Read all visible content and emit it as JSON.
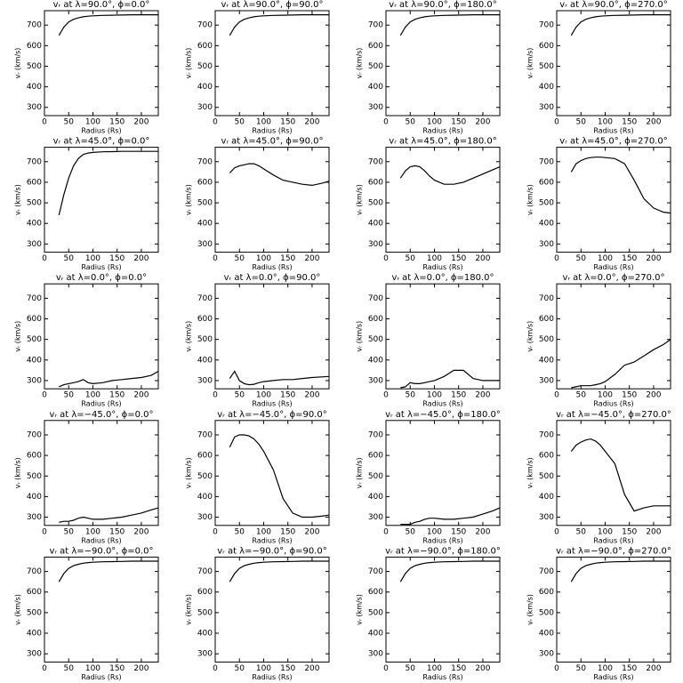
{
  "chart_data": [
    {
      "type": "line",
      "title": "vᵣ at λ=90.0°, ϕ=0.0°",
      "x_label": "Radius (Rs)",
      "y_label": "vᵣ (km/s)",
      "x": [
        30,
        40,
        50,
        60,
        70,
        80,
        90,
        100,
        120,
        140,
        160,
        180,
        200,
        220,
        235
      ],
      "values": [
        650,
        690,
        715,
        728,
        735,
        740,
        743,
        745,
        747,
        748,
        749,
        750,
        750,
        750,
        750
      ],
      "xlim": [
        0,
        235
      ],
      "ylim": [
        260,
        770
      ],
      "xticks": [
        0,
        50,
        100,
        150,
        200
      ],
      "yticks": [
        300,
        400,
        500,
        600,
        700
      ],
      "color": "#000000"
    },
    {
      "type": "line",
      "title": "vᵣ at λ=90.0°, ϕ=90.0°",
      "x_label": "Radius (Rs)",
      "y_label": "vᵣ (km/s)",
      "x": [
        30,
        40,
        50,
        60,
        70,
        80,
        90,
        100,
        120,
        140,
        160,
        180,
        200,
        220,
        235
      ],
      "values": [
        650,
        690,
        715,
        728,
        735,
        740,
        743,
        745,
        747,
        748,
        749,
        750,
        750,
        750,
        750
      ],
      "xlim": [
        0,
        235
      ],
      "ylim": [
        260,
        770
      ],
      "xticks": [
        0,
        50,
        100,
        150,
        200
      ],
      "yticks": [
        300,
        400,
        500,
        600,
        700
      ],
      "color": "#000000"
    },
    {
      "type": "line",
      "title": "vᵣ at λ=90.0°, ϕ=180.0°",
      "x_label": "Radius (Rs)",
      "y_label": "vᵣ (km/s)",
      "x": [
        30,
        40,
        50,
        60,
        70,
        80,
        90,
        100,
        120,
        140,
        160,
        180,
        200,
        220,
        235
      ],
      "values": [
        650,
        690,
        715,
        728,
        735,
        740,
        743,
        745,
        747,
        748,
        749,
        750,
        750,
        750,
        750
      ],
      "xlim": [
        0,
        235
      ],
      "ylim": [
        260,
        770
      ],
      "xticks": [
        0,
        50,
        100,
        150,
        200
      ],
      "yticks": [
        300,
        400,
        500,
        600,
        700
      ],
      "color": "#000000"
    },
    {
      "type": "line",
      "title": "vᵣ at λ=90.0°, ϕ=270.0°",
      "x_label": "Radius (Rs)",
      "y_label": "vᵣ (km/s)",
      "x": [
        30,
        40,
        50,
        60,
        70,
        80,
        90,
        100,
        120,
        140,
        160,
        180,
        200,
        220,
        235
      ],
      "values": [
        650,
        690,
        715,
        728,
        735,
        740,
        743,
        745,
        747,
        748,
        749,
        750,
        750,
        750,
        750
      ],
      "xlim": [
        0,
        235
      ],
      "ylim": [
        260,
        770
      ],
      "xticks": [
        0,
        50,
        100,
        150,
        200
      ],
      "yticks": [
        300,
        400,
        500,
        600,
        700
      ],
      "color": "#000000"
    },
    {
      "type": "line",
      "title": "vᵣ at λ=45.0°, ϕ=0.0°",
      "x_label": "Radius (Rs)",
      "y_label": "vᵣ (km/s)",
      "x": [
        30,
        40,
        50,
        60,
        70,
        80,
        90,
        100,
        120,
        140,
        160,
        180,
        200,
        220,
        235
      ],
      "values": [
        440,
        540,
        620,
        680,
        715,
        735,
        742,
        745,
        748,
        749,
        750,
        750,
        750,
        750,
        750
      ],
      "xlim": [
        0,
        235
      ],
      "ylim": [
        260,
        770
      ],
      "xticks": [
        0,
        50,
        100,
        150,
        200
      ],
      "yticks": [
        300,
        400,
        500,
        600,
        700
      ],
      "color": "#000000"
    },
    {
      "type": "line",
      "title": "vᵣ at λ=45.0°, ϕ=90.0°",
      "x_label": "Radius (Rs)",
      "y_label": "vᵣ (km/s)",
      "x": [
        30,
        40,
        50,
        60,
        70,
        80,
        90,
        100,
        120,
        140,
        160,
        180,
        200,
        220,
        235
      ],
      "values": [
        645,
        670,
        680,
        685,
        690,
        690,
        680,
        665,
        635,
        610,
        600,
        590,
        585,
        595,
        605
      ],
      "xlim": [
        0,
        235
      ],
      "ylim": [
        260,
        770
      ],
      "xticks": [
        0,
        50,
        100,
        150,
        200
      ],
      "yticks": [
        300,
        400,
        500,
        600,
        700
      ],
      "color": "#000000"
    },
    {
      "type": "line",
      "title": "vᵣ at λ=45.0°, ϕ=180.0°",
      "x_label": "Radius (Rs)",
      "y_label": "vᵣ (km/s)",
      "x": [
        30,
        40,
        50,
        60,
        70,
        80,
        90,
        100,
        120,
        140,
        160,
        180,
        200,
        220,
        235
      ],
      "values": [
        620,
        655,
        675,
        680,
        675,
        655,
        630,
        610,
        590,
        590,
        600,
        620,
        640,
        660,
        675
      ],
      "xlim": [
        0,
        235
      ],
      "ylim": [
        260,
        770
      ],
      "xticks": [
        0,
        50,
        100,
        150,
        200
      ],
      "yticks": [
        300,
        400,
        500,
        600,
        700
      ],
      "color": "#000000"
    },
    {
      "type": "line",
      "title": "vᵣ at λ=45.0°, ϕ=270.0°",
      "x_label": "Radius (Rs)",
      "y_label": "vᵣ (km/s)",
      "x": [
        30,
        40,
        50,
        60,
        70,
        80,
        90,
        100,
        120,
        140,
        160,
        180,
        200,
        220,
        235
      ],
      "values": [
        650,
        690,
        705,
        715,
        720,
        722,
        722,
        720,
        715,
        690,
        610,
        520,
        475,
        455,
        450
      ],
      "xlim": [
        0,
        235
      ],
      "ylim": [
        260,
        770
      ],
      "xticks": [
        0,
        50,
        100,
        150,
        200
      ],
      "yticks": [
        300,
        400,
        500,
        600,
        700
      ],
      "color": "#000000"
    },
    {
      "type": "line",
      "title": "vᵣ at λ=0.0°, ϕ=0.0°",
      "x_label": "Radius (Rs)",
      "y_label": "vᵣ (km/s)",
      "x": [
        30,
        40,
        50,
        60,
        70,
        80,
        90,
        100,
        120,
        140,
        160,
        180,
        200,
        220,
        235
      ],
      "values": [
        270,
        280,
        285,
        290,
        295,
        305,
        290,
        285,
        290,
        300,
        305,
        310,
        315,
        325,
        345
      ],
      "xlim": [
        0,
        235
      ],
      "ylim": [
        260,
        770
      ],
      "xticks": [
        0,
        50,
        100,
        150,
        200
      ],
      "yticks": [
        300,
        400,
        500,
        600,
        700
      ],
      "color": "#000000"
    },
    {
      "type": "line",
      "title": "vᵣ at λ=0.0°, ϕ=90.0°",
      "x_label": "Radius (Rs)",
      "y_label": "vᵣ (km/s)",
      "x": [
        30,
        40,
        50,
        60,
        70,
        80,
        90,
        100,
        120,
        140,
        160,
        180,
        200,
        220,
        235
      ],
      "values": [
        310,
        345,
        300,
        285,
        280,
        282,
        290,
        295,
        300,
        305,
        305,
        310,
        315,
        318,
        320
      ],
      "xlim": [
        0,
        235
      ],
      "ylim": [
        260,
        770
      ],
      "xticks": [
        0,
        50,
        100,
        150,
        200
      ],
      "yticks": [
        300,
        400,
        500,
        600,
        700
      ],
      "color": "#000000"
    },
    {
      "type": "line",
      "title": "vᵣ at λ=0.0°, ϕ=180.0°",
      "x_label": "Radius (Rs)",
      "y_label": "vᵣ (km/s)",
      "x": [
        30,
        40,
        50,
        60,
        70,
        80,
        90,
        100,
        120,
        140,
        160,
        180,
        200,
        220,
        235
      ],
      "values": [
        265,
        270,
        290,
        285,
        285,
        290,
        295,
        300,
        320,
        350,
        350,
        310,
        300,
        300,
        300
      ],
      "xlim": [
        0,
        235
      ],
      "ylim": [
        260,
        770
      ],
      "xticks": [
        0,
        50,
        100,
        150,
        200
      ],
      "yticks": [
        300,
        400,
        500,
        600,
        700
      ],
      "color": "#000000"
    },
    {
      "type": "line",
      "title": "vᵣ at λ=0.0°, ϕ=270.0°",
      "x_label": "Radius (Rs)",
      "y_label": "vᵣ (km/s)",
      "x": [
        30,
        40,
        50,
        60,
        70,
        80,
        90,
        100,
        120,
        140,
        160,
        180,
        200,
        220,
        235
      ],
      "values": [
        265,
        270,
        275,
        275,
        275,
        280,
        285,
        295,
        330,
        375,
        390,
        420,
        450,
        475,
        500
      ],
      "xlim": [
        0,
        235
      ],
      "ylim": [
        260,
        770
      ],
      "xticks": [
        0,
        50,
        100,
        150,
        200
      ],
      "yticks": [
        300,
        400,
        500,
        600,
        700
      ],
      "color": "#000000"
    },
    {
      "type": "line",
      "title": "vᵣ at λ=−45.0°, ϕ=0.0°",
      "x_label": "Radius (Rs)",
      "y_label": "vᵣ (km/s)",
      "x": [
        30,
        40,
        50,
        60,
        70,
        80,
        90,
        100,
        120,
        140,
        160,
        180,
        200,
        220,
        235
      ],
      "values": [
        275,
        280,
        280,
        285,
        295,
        300,
        295,
        290,
        290,
        295,
        300,
        310,
        320,
        335,
        345
      ],
      "xlim": [
        0,
        235
      ],
      "ylim": [
        260,
        770
      ],
      "xticks": [
        0,
        50,
        100,
        150,
        200
      ],
      "yticks": [
        300,
        400,
        500,
        600,
        700
      ],
      "color": "#000000"
    },
    {
      "type": "line",
      "title": "vᵣ at λ=−45.0°, ϕ=90.0°",
      "x_label": "Radius (Rs)",
      "y_label": "vᵣ (km/s)",
      "x": [
        30,
        40,
        50,
        60,
        70,
        80,
        90,
        100,
        120,
        140,
        160,
        180,
        200,
        220,
        235
      ],
      "values": [
        640,
        690,
        700,
        700,
        695,
        680,
        655,
        620,
        530,
        390,
        320,
        300,
        300,
        305,
        310
      ],
      "xlim": [
        0,
        235
      ],
      "ylim": [
        260,
        770
      ],
      "xticks": [
        0,
        50,
        100,
        150,
        200
      ],
      "yticks": [
        300,
        400,
        500,
        600,
        700
      ],
      "color": "#000000"
    },
    {
      "type": "line",
      "title": "vᵣ at λ=−45.0°, ϕ=180.0°",
      "x_label": "Radius (Rs)",
      "y_label": "vᵣ (km/s)",
      "x": [
        30,
        40,
        50,
        60,
        70,
        80,
        90,
        100,
        120,
        140,
        160,
        180,
        200,
        220,
        235
      ],
      "values": [
        265,
        265,
        265,
        275,
        280,
        290,
        295,
        295,
        290,
        290,
        295,
        300,
        315,
        330,
        345
      ],
      "xlim": [
        0,
        235
      ],
      "ylim": [
        260,
        770
      ],
      "xticks": [
        0,
        50,
        100,
        150,
        200
      ],
      "yticks": [
        300,
        400,
        500,
        600,
        700
      ],
      "color": "#000000"
    },
    {
      "type": "line",
      "title": "vᵣ at λ=−45.0°, ϕ=270.0°",
      "x_label": "Radius (Rs)",
      "y_label": "vᵣ (km/s)",
      "x": [
        30,
        40,
        50,
        60,
        70,
        80,
        90,
        100,
        120,
        140,
        160,
        180,
        200,
        220,
        235
      ],
      "values": [
        620,
        650,
        665,
        675,
        680,
        670,
        650,
        620,
        560,
        410,
        330,
        345,
        355,
        355,
        355
      ],
      "xlim": [
        0,
        235
      ],
      "ylim": [
        260,
        770
      ],
      "xticks": [
        0,
        50,
        100,
        150,
        200
      ],
      "yticks": [
        300,
        400,
        500,
        600,
        700
      ],
      "color": "#000000"
    },
    {
      "type": "line",
      "title": "vᵣ at λ=−90.0°, ϕ=0.0°",
      "x_label": "Radius (Rs)",
      "y_label": "vᵣ (km/s)",
      "x": [
        30,
        40,
        50,
        60,
        70,
        80,
        90,
        100,
        120,
        140,
        160,
        180,
        200,
        220,
        235
      ],
      "values": [
        650,
        690,
        715,
        728,
        735,
        740,
        743,
        745,
        747,
        748,
        749,
        750,
        750,
        750,
        750
      ],
      "xlim": [
        0,
        235
      ],
      "ylim": [
        260,
        770
      ],
      "xticks": [
        0,
        50,
        100,
        150,
        200
      ],
      "yticks": [
        300,
        400,
        500,
        600,
        700
      ],
      "color": "#000000"
    },
    {
      "type": "line",
      "title": "vᵣ at λ=−90.0°, ϕ=90.0°",
      "x_label": "Radius (Rs)",
      "y_label": "vᵣ (km/s)",
      "x": [
        30,
        40,
        50,
        60,
        70,
        80,
        90,
        100,
        120,
        140,
        160,
        180,
        200,
        220,
        235
      ],
      "values": [
        650,
        690,
        715,
        728,
        735,
        740,
        743,
        745,
        747,
        748,
        749,
        750,
        750,
        750,
        750
      ],
      "xlim": [
        0,
        235
      ],
      "ylim": [
        260,
        770
      ],
      "xticks": [
        0,
        50,
        100,
        150,
        200
      ],
      "yticks": [
        300,
        400,
        500,
        600,
        700
      ],
      "color": "#000000"
    },
    {
      "type": "line",
      "title": "vᵣ at λ=−90.0°, ϕ=180.0°",
      "x_label": "Radius (Rs)",
      "y_label": "vᵣ (km/s)",
      "x": [
        30,
        40,
        50,
        60,
        70,
        80,
        90,
        100,
        120,
        140,
        160,
        180,
        200,
        220,
        235
      ],
      "values": [
        650,
        690,
        715,
        728,
        735,
        740,
        743,
        745,
        747,
        748,
        749,
        750,
        750,
        750,
        750
      ],
      "xlim": [
        0,
        235
      ],
      "ylim": [
        260,
        770
      ],
      "xticks": [
        0,
        50,
        100,
        150,
        200
      ],
      "yticks": [
        300,
        400,
        500,
        600,
        700
      ],
      "color": "#000000"
    },
    {
      "type": "line",
      "title": "vᵣ at λ=−90.0°, ϕ=270.0°",
      "x_label": "Radius (Rs)",
      "y_label": "vᵣ (km/s)",
      "x": [
        30,
        40,
        50,
        60,
        70,
        80,
        90,
        100,
        120,
        140,
        160,
        180,
        200,
        220,
        235
      ],
      "values": [
        650,
        690,
        715,
        728,
        735,
        740,
        743,
        745,
        747,
        748,
        749,
        750,
        750,
        750,
        750
      ],
      "xlim": [
        0,
        235
      ],
      "ylim": [
        260,
        770
      ],
      "xticks": [
        0,
        50,
        100,
        150,
        200
      ],
      "yticks": [
        300,
        400,
        500,
        600,
        700
      ],
      "color": "#000000"
    }
  ]
}
